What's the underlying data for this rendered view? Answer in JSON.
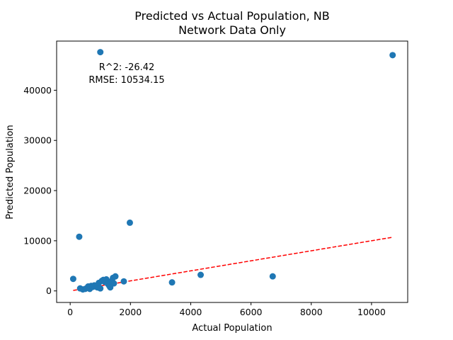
{
  "chart_data": {
    "type": "scatter",
    "title": [
      "Predicted vs Actual Population, NB",
      "Network Data Only"
    ],
    "xlabel": "Actual Population",
    "ylabel": "Predicted Population",
    "xlim": [
      -450,
      11200
    ],
    "ylim": [
      -2300,
      49800
    ],
    "xticks": [
      0,
      2000,
      4000,
      6000,
      8000,
      10000
    ],
    "yticks": [
      0,
      10000,
      20000,
      30000,
      40000
    ],
    "xtick_labels": [
      "0",
      "2000",
      "4000",
      "6000",
      "8000",
      "10000"
    ],
    "ytick_labels": [
      "0",
      "10000",
      "20000",
      "30000",
      "40000"
    ],
    "grid": false,
    "legend": false,
    "colors": {
      "points": "#1f77b4",
      "fit_line": "#ff0000"
    },
    "annotations": [
      "R^2: -26.42",
      "RMSE: 10534.15"
    ],
    "fit_line": {
      "x": [
        100,
        10700
      ],
      "y": [
        100,
        10700
      ],
      "style": "dashed"
    },
    "points": [
      {
        "x": 1000,
        "y": 47600
      },
      {
        "x": 10700,
        "y": 47000
      },
      {
        "x": 300,
        "y": 10800
      },
      {
        "x": 1980,
        "y": 13600
      },
      {
        "x": 100,
        "y": 2400
      },
      {
        "x": 330,
        "y": 500
      },
      {
        "x": 420,
        "y": 300
      },
      {
        "x": 500,
        "y": 400
      },
      {
        "x": 560,
        "y": 600
      },
      {
        "x": 600,
        "y": 900
      },
      {
        "x": 650,
        "y": 400
      },
      {
        "x": 700,
        "y": 1000
      },
      {
        "x": 750,
        "y": 800
      },
      {
        "x": 800,
        "y": 1100
      },
      {
        "x": 850,
        "y": 900
      },
      {
        "x": 900,
        "y": 700
      },
      {
        "x": 950,
        "y": 1600
      },
      {
        "x": 1000,
        "y": 500
      },
      {
        "x": 1050,
        "y": 2000
      },
      {
        "x": 1100,
        "y": 2200
      },
      {
        "x": 1150,
        "y": 1800
      },
      {
        "x": 1200,
        "y": 2300
      },
      {
        "x": 1250,
        "y": 1400
      },
      {
        "x": 1300,
        "y": 1000
      },
      {
        "x": 1330,
        "y": 700
      },
      {
        "x": 1380,
        "y": 2000
      },
      {
        "x": 1420,
        "y": 2600
      },
      {
        "x": 1450,
        "y": 1500
      },
      {
        "x": 1500,
        "y": 2900
      },
      {
        "x": 1780,
        "y": 1900
      },
      {
        "x": 3380,
        "y": 1700
      },
      {
        "x": 4330,
        "y": 3200
      },
      {
        "x": 6720,
        "y": 2900
      }
    ]
  }
}
